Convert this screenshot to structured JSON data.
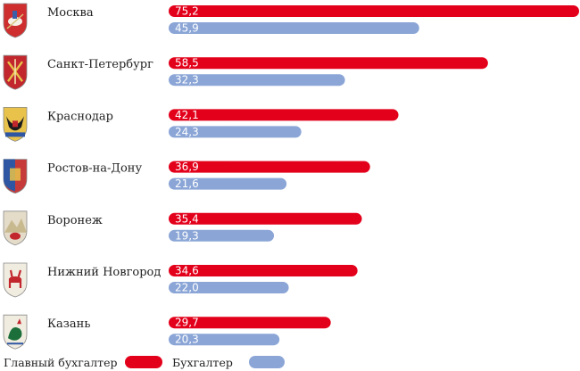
{
  "chart_data": {
    "type": "bar",
    "orientation": "horizontal",
    "categories": [
      "Москва",
      "Санкт-Петербург",
      "Краснодар",
      "Ростов-на-Дону",
      "Воронеж",
      "Нижний Новгород",
      "Казань"
    ],
    "series": [
      {
        "name": "Главный бухгалтер",
        "color": "#e3001b",
        "values": [
          75.2,
          58.5,
          42.1,
          36.9,
          35.4,
          34.6,
          29.7
        ],
        "labels": [
          "75,2",
          "58,5",
          "42,1",
          "36,9",
          "35,4",
          "34,6",
          "29,7"
        ]
      },
      {
        "name": "Бухгалтер",
        "color": "#8aa5d6",
        "values": [
          45.9,
          32.3,
          24.3,
          21.6,
          19.3,
          22.0,
          20.3
        ],
        "labels": [
          "45,9",
          "32,3",
          "24,3",
          "21,6",
          "19,3",
          "22,0",
          "20,3"
        ]
      }
    ],
    "icons": [
      "moscow-coat-of-arms-icon",
      "saint-petersburg-coat-of-arms-icon",
      "krasnodar-coat-of-arms-icon",
      "rostov-on-don-coat-of-arms-icon",
      "voronezh-coat-of-arms-icon",
      "nizhny-novgorod-coat-of-arms-icon",
      "kazan-coat-of-arms-icon"
    ],
    "xlim": [
      0,
      75.2
    ],
    "title": "",
    "xlabel": "",
    "ylabel": "",
    "grid": false,
    "legend_position": "bottom-left"
  }
}
